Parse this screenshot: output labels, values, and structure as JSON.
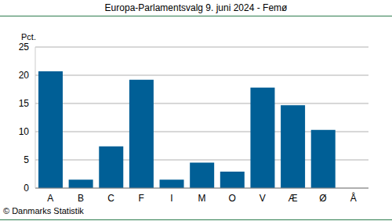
{
  "chart_data": {
    "type": "bar",
    "title": "Europa-Parlamentsvalg 9. juni 2024 - Femø",
    "y_label": "Pct.",
    "footer": "© Danmarks Statistik",
    "categories": [
      "A",
      "B",
      "C",
      "F",
      "I",
      "M",
      "O",
      "V",
      "Æ",
      "Ø",
      "Å"
    ],
    "values": [
      20.7,
      1.5,
      7.4,
      19.2,
      1.5,
      4.5,
      2.9,
      17.8,
      14.7,
      10.3,
      0
    ],
    "color": "#005f96",
    "ylim": [
      0,
      25
    ],
    "yticks": [
      0,
      5,
      10,
      15,
      20,
      25
    ],
    "grid": true
  }
}
